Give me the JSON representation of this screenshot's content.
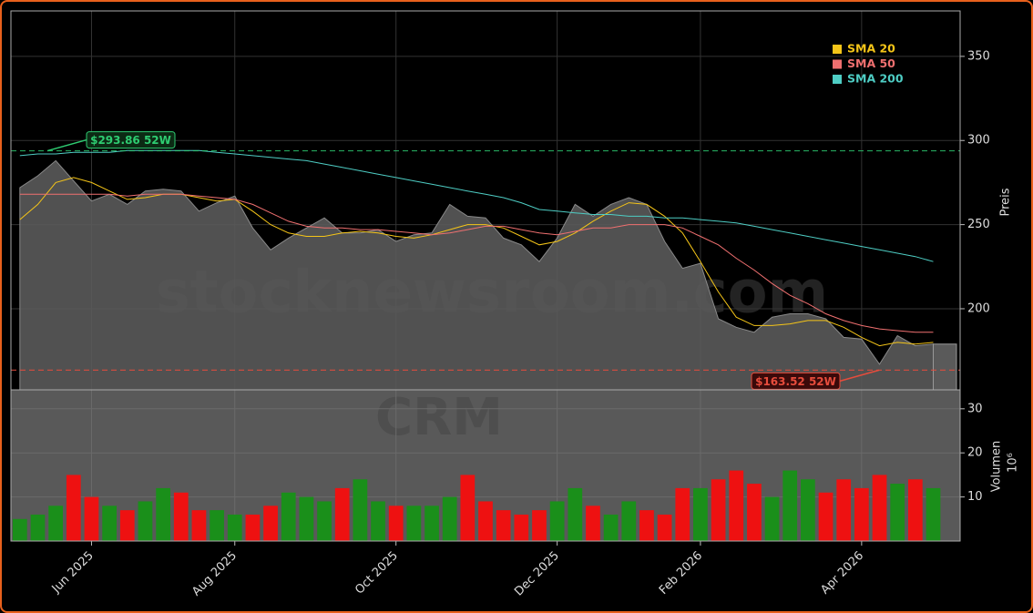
{
  "chart_data": {
    "type": "area",
    "categories": [
      null,
      null,
      null,
      null,
      "Jun 2025",
      null,
      null,
      null,
      null,
      null,
      null,
      null,
      "Aug 2025",
      null,
      null,
      null,
      null,
      null,
      null,
      null,
      null,
      "Oct 2025",
      null,
      null,
      null,
      null,
      null,
      null,
      null,
      null,
      "Dec 2025",
      null,
      null,
      null,
      null,
      null,
      null,
      null,
      "Feb 2026",
      null,
      null,
      null,
      null,
      null,
      null,
      null,
      null,
      "Apr 2026",
      null,
      null,
      null,
      null
    ],
    "values": [
      272,
      279,
      288,
      276,
      264,
      268,
      262,
      270,
      271,
      270,
      258,
      263,
      267,
      248,
      235,
      242,
      248,
      254,
      245,
      245,
      247,
      240,
      244,
      245,
      262,
      255,
      254,
      242,
      238,
      228,
      242,
      262,
      255,
      262,
      266,
      262,
      240,
      224,
      227,
      194,
      189,
      186,
      195,
      197,
      197,
      194,
      183,
      182,
      167,
      184,
      178,
      179
    ],
    "color": "#5a5a5a",
    "series": [
      {
        "name": "SMA 20",
        "color": "#f5c518",
        "values": [
          253,
          262,
          275,
          278,
          275,
          270,
          265,
          266,
          268,
          268,
          266,
          264,
          265,
          258,
          250,
          245,
          243,
          243,
          245,
          246,
          245,
          243,
          242,
          244,
          247,
          250,
          250,
          248,
          243,
          238,
          240,
          245,
          252,
          258,
          263,
          262,
          255,
          245,
          228,
          210,
          195,
          190,
          190,
          191,
          193,
          193,
          189,
          183,
          178,
          180,
          179,
          180
        ]
      },
      {
        "name": "SMA 50",
        "color": "#f07070",
        "values": [
          268,
          268,
          268,
          268,
          268,
          268,
          267,
          268,
          268,
          268,
          267,
          266,
          265,
          262,
          257,
          252,
          249,
          248,
          248,
          247,
          247,
          246,
          245,
          244,
          245,
          247,
          249,
          249,
          247,
          245,
          244,
          246,
          248,
          248,
          250,
          250,
          250,
          248,
          243,
          238,
          230,
          223,
          215,
          208,
          203,
          197,
          193,
          190,
          188,
          187,
          186,
          186
        ]
      },
      {
        "name": "SMA 200",
        "color": "#4ecdc4",
        "values": [
          291,
          292,
          292,
          293,
          293,
          293,
          294,
          294,
          294,
          294,
          294,
          293,
          292,
          291,
          290,
          289,
          288,
          286,
          284,
          282,
          280,
          278,
          276,
          274,
          272,
          270,
          268,
          266,
          263,
          259,
          258,
          257,
          256,
          256,
          255,
          255,
          254,
          254,
          253,
          252,
          251,
          249,
          247,
          245,
          243,
          241,
          239,
          237,
          235,
          233,
          231,
          228
        ]
      }
    ],
    "ylim": [
      151.8,
      377
    ],
    "yticks": [
      200,
      250,
      300,
      350
    ],
    "ylabel": "Preis",
    "grid": true,
    "legend": "upper right",
    "annotations": [
      {
        "value": 293.86,
        "label": "$293.86 52W",
        "color": "#2ecc71"
      },
      {
        "value": 163.52,
        "label": "$163.52 52W",
        "color": "#e74c3c"
      }
    ],
    "watermark": [
      "stocknewsroom.com",
      "CRM"
    ],
    "volume": {
      "values": [
        5,
        6,
        8,
        15,
        10,
        8,
        7,
        9,
        12,
        11,
        7,
        7,
        6,
        6,
        8,
        11,
        10,
        9,
        12,
        14,
        9,
        8,
        8,
        8,
        10,
        15,
        9,
        7,
        6,
        7,
        9,
        12,
        8,
        6,
        9,
        7,
        6,
        12,
        12,
        14,
        16,
        13,
        10,
        16,
        14,
        11,
        14,
        12,
        15,
        13,
        14,
        12
      ],
      "ylim": [
        0,
        34.3
      ],
      "yticks": [
        10,
        20,
        30
      ],
      "label": "Volumen",
      "unit": "10⁶",
      "up_color": "#1a8f1a",
      "down_color": "#ee1111"
    }
  }
}
